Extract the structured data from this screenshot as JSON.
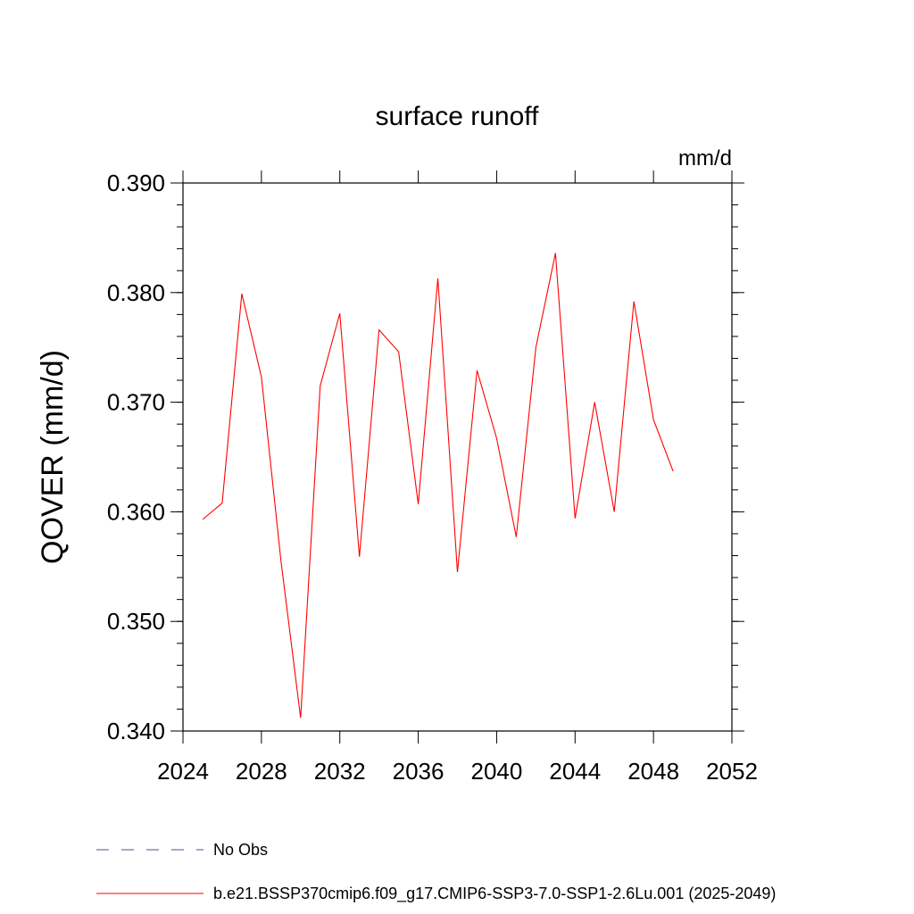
{
  "chart_data": {
    "type": "line",
    "title": "surface runoff",
    "units_label": "mm/d",
    "ylabel": "QOVER  (mm/d)",
    "xlabel": "",
    "xlim": [
      2024,
      2052
    ],
    "ylim": [
      0.34,
      0.39
    ],
    "x_ticks": [
      "2024",
      "2028",
      "2032",
      "2036",
      "2040",
      "2044",
      "2048",
      "2052"
    ],
    "y_ticks": [
      "0.340",
      "0.350",
      "0.360",
      "0.370",
      "0.380",
      "0.390"
    ],
    "series": [
      {
        "name": "b.e21.BSSP370cmip6.f09_g17.CMIP6-SSP3-7.0-SSP1-2.6Lu.001 (2025-2049)",
        "color": "#ff0000",
        "style": "solid",
        "x": [
          2025,
          2026,
          2027,
          2028,
          2029,
          2030,
          2031,
          2032,
          2033,
          2034,
          2035,
          2036,
          2037,
          2038,
          2039,
          2040,
          2041,
          2042,
          2043,
          2044,
          2045,
          2046,
          2047,
          2048,
          2049
        ],
        "y": [
          0.3593,
          0.3608,
          0.3799,
          0.3723,
          0.3555,
          0.3412,
          0.3715,
          0.3781,
          0.3559,
          0.3766,
          0.3746,
          0.3607,
          0.3813,
          0.3545,
          0.3729,
          0.3667,
          0.3577,
          0.375,
          0.3836,
          0.3594,
          0.37,
          0.36,
          0.3792,
          0.3684,
          0.3637
        ]
      }
    ],
    "legend": [
      {
        "label": "No Obs",
        "color": "#5a4a9a",
        "style": "dashed"
      },
      {
        "label": "b.e21.BSSP370cmip6.f09_g17.CMIP6-SSP3-7.0-SSP1-2.6Lu.001 (2025-2049)",
        "color": "#ff0000",
        "style": "solid"
      }
    ],
    "legend_position": "bottom",
    "grid": false
  }
}
